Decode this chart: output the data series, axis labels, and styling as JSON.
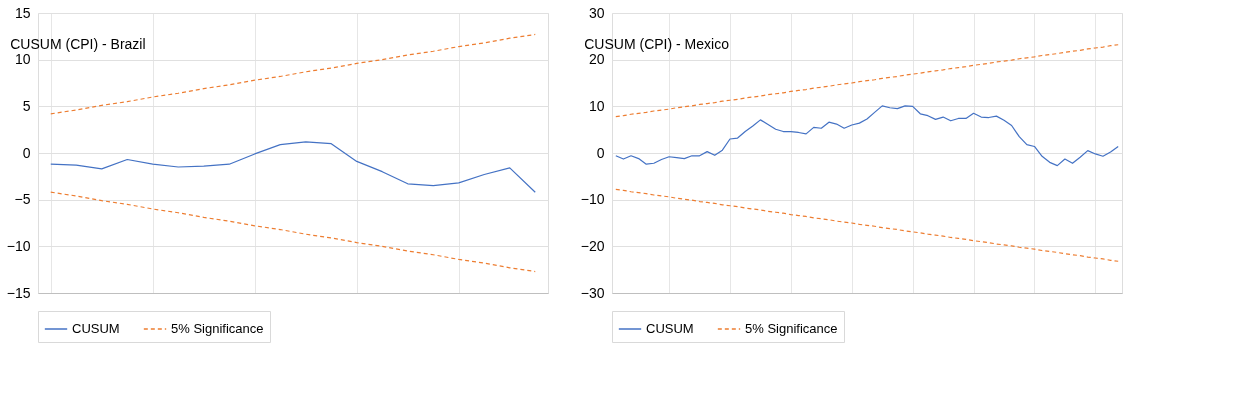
{
  "chart_data": [
    {
      "type": "line",
      "title": "CUSUM (CPI) - Brazil",
      "categories": [
        null,
        null,
        null,
        null,
        null,
        null,
        null,
        null,
        null,
        null,
        null,
        null,
        null,
        null,
        null,
        null,
        null,
        null,
        null,
        null
      ],
      "series": [
        {
          "name": "CUSUM",
          "color": "#4472c4",
          "line_style": "solid",
          "values": [
            -1.2,
            -1.3,
            -1.7,
            -0.7,
            -1.2,
            -1.5,
            -1.4,
            -1.2,
            -0.1,
            0.9,
            1.2,
            1.0,
            -0.9,
            -2.0,
            -3.3,
            -3.5,
            -3.2,
            -2.3,
            -1.6,
            -4.2
          ]
        },
        {
          "name": "5% Significance",
          "color": "#ed7d31",
          "line_style": "dashed",
          "values": [
            4.2,
            4.6,
            5.1,
            5.5,
            6.0,
            6.4,
            6.9,
            7.3,
            7.8,
            8.2,
            8.7,
            9.1,
            9.6,
            10.0,
            10.5,
            10.9,
            11.4,
            11.8,
            12.3,
            12.7
          ]
        },
        {
          "color": "#ed7d31",
          "line_style": "dashed",
          "values": [
            -4.2,
            -4.6,
            -5.1,
            -5.5,
            -6.0,
            -6.4,
            -6.9,
            -7.3,
            -7.8,
            -8.2,
            -8.7,
            -9.1,
            -9.6,
            -10.0,
            -10.5,
            -10.9,
            -11.4,
            -11.8,
            -12.3,
            -12.7
          ]
        }
      ],
      "ylim": [
        -15,
        15
      ],
      "yticks": [
        -15,
        -10,
        -5,
        0,
        5,
        10,
        15
      ],
      "grid": true,
      "legend": "bottom",
      "tick_labels": "y"
    },
    {
      "type": "line",
      "title": "CUSUM (CPI) - Mexico",
      "categories": [
        null,
        null,
        null,
        null,
        null,
        null,
        null,
        null,
        null,
        null,
        null,
        null,
        null,
        null,
        null,
        null,
        null,
        null,
        null,
        null,
        null,
        null,
        null,
        null,
        null,
        null,
        null,
        null,
        null,
        null,
        null,
        null,
        null,
        null,
        null,
        null,
        null,
        null,
        null,
        null,
        null,
        null,
        null,
        null,
        null,
        null,
        null,
        null,
        null,
        null,
        null,
        null,
        null,
        null,
        null,
        null,
        null,
        null,
        null,
        null,
        null,
        null,
        null,
        null,
        null,
        null,
        null
      ],
      "series": [
        {
          "name": "CUSUM",
          "color": "#4472c4",
          "line_style": "solid",
          "values": [
            -0.6,
            -1.3,
            -0.6,
            -1.2,
            -2.4,
            -2.2,
            -1.4,
            -0.8,
            -1.0,
            -1.2,
            -0.6,
            -0.6,
            0.3,
            -0.5,
            0.6,
            3.0,
            3.2,
            4.6,
            5.8,
            7.1,
            6.1,
            5.1,
            4.6,
            4.6,
            4.4,
            4.1,
            5.5,
            5.3,
            6.6,
            6.2,
            5.3,
            6.0,
            6.4,
            7.3,
            8.7,
            10.1,
            9.7,
            9.5,
            10.1,
            10.0,
            8.4,
            8.0,
            7.2,
            7.7,
            6.9,
            7.4,
            7.4,
            8.5,
            7.7,
            7.6,
            7.9,
            7.0,
            5.9,
            3.5,
            1.8,
            1.4,
            -0.7,
            -2.0,
            -2.7,
            -1.3,
            -2.2,
            -0.9,
            0.5,
            -0.2,
            -0.7,
            0.2,
            1.4
          ]
        },
        {
          "name": "5% Significance",
          "color": "#ed7d31",
          "line_style": "dashed",
          "values": [
            7.8,
            8.0,
            8.3,
            8.5,
            8.7,
            9.0,
            9.2,
            9.4,
            9.7,
            9.9,
            10.1,
            10.4,
            10.6,
            10.8,
            11.1,
            11.3,
            11.5,
            11.8,
            12.0,
            12.2,
            12.5,
            12.7,
            12.9,
            13.2,
            13.4,
            13.6,
            13.9,
            14.1,
            14.3,
            14.6,
            14.8,
            15.0,
            15.3,
            15.5,
            15.7,
            16.0,
            16.2,
            16.4,
            16.7,
            16.9,
            17.1,
            17.4,
            17.6,
            17.8,
            18.1,
            18.3,
            18.5,
            18.8,
            19.0,
            19.2,
            19.5,
            19.7,
            19.9,
            20.2,
            20.4,
            20.6,
            20.9,
            21.1,
            21.3,
            21.6,
            21.8,
            22.0,
            22.3,
            22.5,
            22.7,
            23.0,
            23.2
          ]
        },
        {
          "color": "#ed7d31",
          "line_style": "dashed",
          "values": [
            -7.8,
            -8.0,
            -8.3,
            -8.5,
            -8.7,
            -9.0,
            -9.2,
            -9.4,
            -9.7,
            -9.9,
            -10.1,
            -10.4,
            -10.6,
            -10.8,
            -11.1,
            -11.3,
            -11.5,
            -11.8,
            -12.0,
            -12.2,
            -12.5,
            -12.7,
            -12.9,
            -13.2,
            -13.4,
            -13.6,
            -13.9,
            -14.1,
            -14.3,
            -14.6,
            -14.8,
            -15.0,
            -15.3,
            -15.5,
            -15.7,
            -16.0,
            -16.2,
            -16.4,
            -16.7,
            -16.9,
            -17.1,
            -17.4,
            -17.6,
            -17.8,
            -18.1,
            -18.3,
            -18.5,
            -18.8,
            -19.0,
            -19.2,
            -19.5,
            -19.7,
            -19.9,
            -20.2,
            -20.4,
            -20.6,
            -20.9,
            -21.1,
            -21.3,
            -21.6,
            -21.8,
            -22.0,
            -22.3,
            -22.5,
            -22.7,
            -23.0,
            -23.2
          ]
        }
      ],
      "ylim": [
        -30,
        30
      ],
      "yticks": [
        -30,
        -20,
        -10,
        0,
        10,
        20,
        30
      ],
      "grid": true,
      "legend": "bottom",
      "tick_labels": "y"
    }
  ]
}
